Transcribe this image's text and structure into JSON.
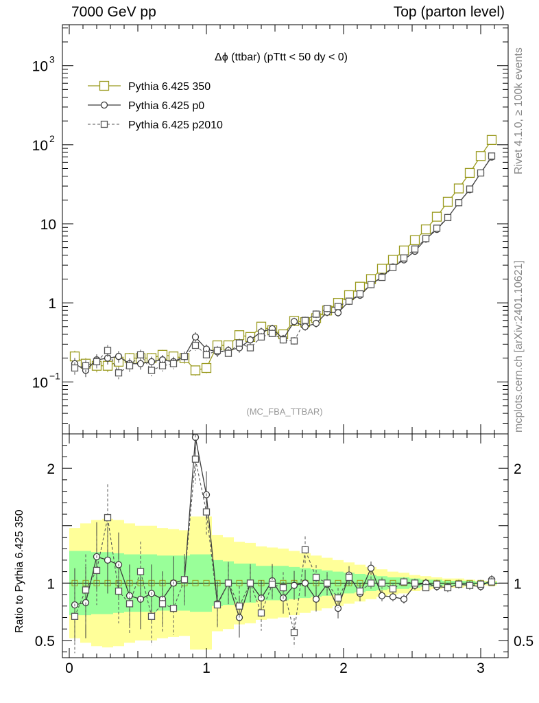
{
  "header": {
    "left": "7000 GeV pp",
    "right": "Top (parton level)"
  },
  "side_labels": {
    "rivet": "Rivet 4.1.0, ≥ 100k events",
    "mcplots": "mcplots.cern.ch [arXiv:2401.10621]"
  },
  "colors": {
    "ref": "#9a9a1e",
    "p0": "#3a3a3a",
    "p2010": "#555555",
    "band_inner": "#99ff99",
    "band_outer": "#ffff99"
  },
  "chart_data": [
    {
      "type": "line",
      "scale": "log",
      "title": "Δϕ (ttbar) (pTtt < 50 dy < 0)",
      "watermark": "(MC_FBA_TTBAR)",
      "xlabel": "",
      "ylabel": "",
      "xlim": [
        -0.05,
        3.2
      ],
      "ylim": [
        0.022,
        3300
      ],
      "x_ticks": [
        0,
        1,
        2,
        3
      ],
      "y_tick_labels": [
        {
          "value": 0.1,
          "base": "10",
          "exp": "−1"
        },
        {
          "value": 1,
          "base": "1",
          "exp": ""
        },
        {
          "value": 10,
          "base": "10",
          "exp": ""
        },
        {
          "value": 100,
          "base": "10",
          "exp": "2"
        },
        {
          "value": 1000,
          "base": "10",
          "exp": "3"
        }
      ],
      "legend": [
        "Pythia 6.425 350",
        "Pythia 6.425 p0",
        "Pythia 6.425 p2010"
      ],
      "legend_position": "top-left",
      "x": [
        0.04,
        0.12,
        0.2,
        0.28,
        0.36,
        0.44,
        0.52,
        0.6,
        0.68,
        0.76,
        0.84,
        0.92,
        1.0,
        1.08,
        1.16,
        1.24,
        1.32,
        1.4,
        1.48,
        1.56,
        1.64,
        1.72,
        1.8,
        1.88,
        1.96,
        2.04,
        2.12,
        2.2,
        2.28,
        2.36,
        2.44,
        2.52,
        2.6,
        2.68,
        2.76,
        2.84,
        2.92,
        3.0,
        3.08
      ],
      "series": [
        {
          "name": "Pythia 6.425 350",
          "marker": "square-open",
          "values": [
            0.21,
            0.17,
            0.16,
            0.16,
            0.18,
            0.2,
            0.2,
            0.2,
            0.22,
            0.21,
            0.2,
            0.14,
            0.15,
            0.29,
            0.29,
            0.39,
            0.37,
            0.5,
            0.45,
            0.4,
            0.59,
            0.57,
            0.64,
            0.8,
            1.0,
            1.25,
            1.6,
            2.0,
            2.7,
            3.5,
            4.6,
            6.2,
            8.5,
            12.3,
            19.0,
            28.0,
            44.0,
            72.0,
            115.0
          ]
        },
        {
          "name": "Pythia 6.425 p0",
          "marker": "circle-open",
          "values": [
            0.17,
            0.14,
            0.19,
            0.2,
            0.21,
            0.17,
            0.17,
            0.18,
            0.19,
            0.18,
            0.21,
            0.37,
            0.26,
            0.24,
            0.25,
            0.27,
            0.34,
            0.43,
            0.47,
            0.35,
            0.58,
            0.5,
            0.55,
            0.76,
            0.75,
            1.05,
            1.25,
            1.7,
            2.15,
            2.85,
            3.5,
            4.5,
            6.4,
            8.5,
            12.0,
            18.5,
            27.0,
            44.0,
            70.0
          ]
        },
        {
          "name": "Pythia 6.425 p2010",
          "marker": "square-open",
          "dashed": true,
          "values": [
            0.15,
            0.16,
            0.18,
            0.25,
            0.13,
            0.16,
            0.22,
            0.14,
            0.16,
            0.17,
            0.21,
            0.29,
            0.22,
            0.25,
            0.23,
            0.31,
            0.27,
            0.37,
            0.41,
            0.34,
            0.33,
            0.6,
            0.72,
            0.85,
            0.9,
            1.05,
            1.3,
            1.7,
            2.1,
            2.8,
            3.7,
            4.8,
            6.5,
            8.8,
            12.0,
            18.5,
            27.5,
            44.0,
            72.0
          ]
        }
      ]
    },
    {
      "type": "line",
      "title": "",
      "xlabel": "",
      "ylabel": "Ratio to Pythia 6.425 350",
      "xlim": [
        -0.05,
        3.2
      ],
      "ylim": [
        0.35,
        2.3
      ],
      "x_ticks": [
        0,
        1,
        2,
        3
      ],
      "y_ticks": [
        0.5,
        1,
        2
      ],
      "y_tick_labels": [
        "0.5",
        "1",
        "2"
      ],
      "x": [
        0.04,
        0.12,
        0.2,
        0.28,
        0.36,
        0.44,
        0.52,
        0.6,
        0.68,
        0.76,
        0.84,
        0.92,
        1.0,
        1.08,
        1.16,
        1.24,
        1.32,
        1.4,
        1.48,
        1.56,
        1.64,
        1.72,
        1.8,
        1.88,
        1.96,
        2.04,
        2.12,
        2.2,
        2.28,
        2.36,
        2.44,
        2.52,
        2.6,
        2.68,
        2.76,
        2.84,
        2.92,
        3.0,
        3.08
      ],
      "band_inner": [
        0.28,
        0.28,
        0.27,
        0.27,
        0.26,
        0.25,
        0.25,
        0.25,
        0.24,
        0.24,
        0.24,
        0.25,
        0.25,
        0.2,
        0.19,
        0.17,
        0.17,
        0.15,
        0.15,
        0.15,
        0.14,
        0.13,
        0.12,
        0.11,
        0.1,
        0.09,
        0.08,
        0.07,
        0.06,
        0.05,
        0.05,
        0.04,
        0.03,
        0.03,
        0.02,
        0.02,
        0.02,
        0.01,
        0.01
      ],
      "band_outer": [
        0.48,
        0.52,
        0.55,
        0.56,
        0.55,
        0.52,
        0.5,
        0.5,
        0.48,
        0.47,
        0.46,
        0.58,
        0.58,
        0.42,
        0.4,
        0.36,
        0.35,
        0.32,
        0.31,
        0.3,
        0.28,
        0.26,
        0.24,
        0.22,
        0.2,
        0.18,
        0.16,
        0.14,
        0.12,
        0.1,
        0.09,
        0.07,
        0.06,
        0.05,
        0.04,
        0.04,
        0.03,
        0.02,
        0.02
      ],
      "series": [
        {
          "name": "Pythia 6.425 p0",
          "marker": "circle-open",
          "values": [
            0.81,
            0.83,
            1.23,
            1.2,
            1.16,
            0.89,
            0.86,
            0.91,
            0.86,
            1.0,
            1.03,
            2.27,
            1.77,
            0.82,
            1.0,
            0.7,
            1.0,
            0.87,
            1.02,
            0.87,
            0.98,
            1.0,
            0.86,
            0.99,
            0.78,
            1.07,
            0.91,
            1.13,
            0.89,
            0.88,
            0.86,
            0.98,
            1.0,
            0.97,
            0.96,
            0.99,
            0.98,
            0.97,
            1.03
          ]
        },
        {
          "name": "Pythia 6.425 p2010",
          "marker": "square-open",
          "dashed": true,
          "values": [
            0.71,
            0.94,
            1.11,
            1.57,
            0.93,
            0.82,
            1.1,
            0.71,
            0.82,
            0.78,
            1.03,
            2.08,
            1.62,
            0.81,
            1.0,
            0.8,
            1.0,
            0.74,
            0.99,
            0.96,
            0.57,
            1.29,
            1.05,
            1.0,
            0.87,
            1.05,
            0.93,
            1.0,
            1.0,
            0.95,
            1.01,
            1.0,
            0.96,
            0.99,
            0.96,
            0.99,
            0.98,
            0.99,
            1.01
          ]
        }
      ]
    }
  ]
}
